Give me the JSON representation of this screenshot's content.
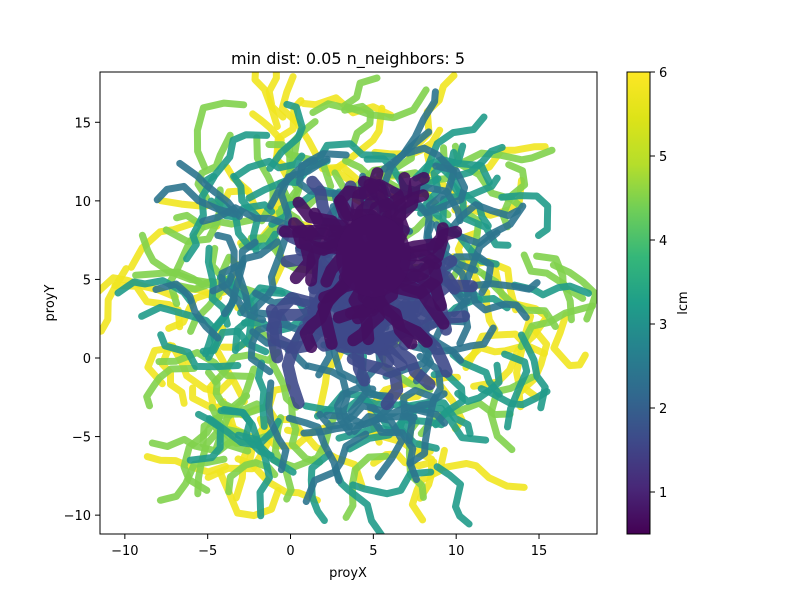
{
  "chart_data": {
    "type": "scatter",
    "title": "min dist: 0.05 n_neighbors: 5",
    "xlabel": "proyX",
    "ylabel": "proyY",
    "xlim": [
      -11.5,
      18.5
    ],
    "ylim": [
      -11.2,
      18.2
    ],
    "x_ticks": [
      -10,
      -5,
      0,
      5,
      10,
      15
    ],
    "y_ticks": [
      -10,
      -5,
      0,
      5,
      10,
      15
    ],
    "grid": false,
    "colorbar": {
      "label": "lcm",
      "colormap": "viridis",
      "range": [
        0.5,
        6
      ],
      "ticks": [
        1,
        2,
        3,
        4,
        5,
        6
      ]
    },
    "point_shape": "dense tangled ring of curved point trails (UMAP embedding)",
    "point_regions": [
      {
        "description": "dark purple core",
        "lcm": 0.7,
        "center": [
          5.0,
          6.5
        ],
        "extent": [
          3.0,
          3.5
        ]
      },
      {
        "description": "purple inner body",
        "lcm": 1.6,
        "center": [
          4.5,
          4.0
        ],
        "extent": [
          4.5,
          5.0
        ]
      },
      {
        "description": "blue transition band",
        "lcm": 2.4,
        "center": [
          3.5,
          4.0
        ],
        "extent": [
          8.5,
          9.0
        ]
      },
      {
        "description": "teal middle ring",
        "lcm": 3.2,
        "center": [
          3.5,
          3.5
        ],
        "extent": [
          11.5,
          12.0
        ]
      },
      {
        "description": "green outer ring",
        "lcm": 4.5,
        "center": [
          3.5,
          3.5
        ],
        "extent": [
          13.0,
          12.5
        ]
      },
      {
        "description": "yellow rim",
        "lcm": 5.8,
        "center": [
          3.5,
          3.5
        ],
        "extent": [
          13.8,
          13.0
        ]
      }
    ]
  }
}
